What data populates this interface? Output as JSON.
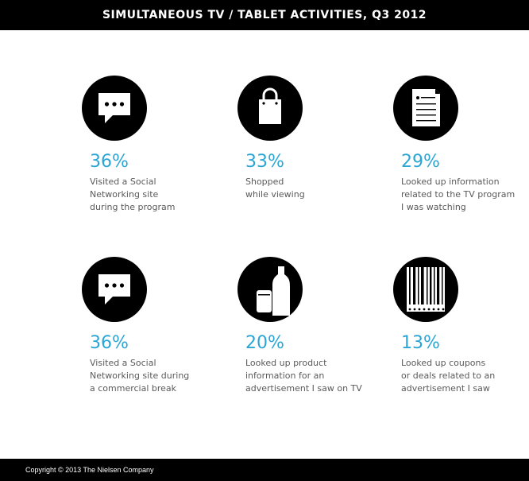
{
  "header": {
    "title": "SIMULTANEOUS TV / TABLET ACTIVITIES, Q3 2012"
  },
  "footer": {
    "copyright": "Copyright © 2013 The Nielsen Company"
  },
  "colors": {
    "accent": "#2aa6d6",
    "icon_bg": "#000000",
    "text": "#5a5a5a"
  },
  "chart_data": {
    "type": "table",
    "title": "SIMULTANEOUS TV / TABLET ACTIVITIES, Q3 2012",
    "items": [
      {
        "icon": "chat-bubble-icon",
        "value": 36,
        "percent_label": "36%",
        "label": "Visited a Social\nNetworking site\nduring the program"
      },
      {
        "icon": "shopping-bag-icon",
        "value": 33,
        "percent_label": "33%",
        "label": "Shopped\nwhile viewing"
      },
      {
        "icon": "document-icon",
        "value": 29,
        "percent_label": "29%",
        "label": "Looked up information\nrelated to the TV program\nI was watching"
      },
      {
        "icon": "chat-bubble-icon",
        "value": 36,
        "percent_label": "36%",
        "label": "Visited a Social\nNetworking site during\na commercial break"
      },
      {
        "icon": "can-and-bottle-icon",
        "value": 20,
        "percent_label": "20%",
        "label": "Looked up product\ninformation for an\nadvertisement I saw on TV"
      },
      {
        "icon": "coupon-barcode-icon",
        "value": 13,
        "percent_label": "13%",
        "label": "Looked up coupons\nor deals related to an\nadvertisement I saw"
      }
    ]
  }
}
